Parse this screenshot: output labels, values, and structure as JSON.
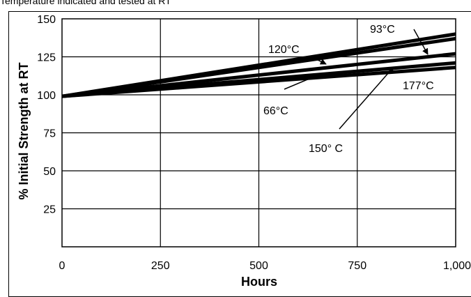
{
  "caption": "Temperature indicated and tested at RT",
  "chart_data": {
    "type": "line",
    "title": "",
    "xlabel": "Hours",
    "ylabel": "% Initial Strength at RT",
    "xlim": [
      0,
      1000
    ],
    "ylim": [
      0,
      150
    ],
    "x_ticks": [
      "0",
      "250",
      "500",
      "750",
      "1,000"
    ],
    "y_ticks": [
      "150",
      "125",
      "100",
      "75",
      "50",
      "25"
    ],
    "grid": true,
    "series": [
      {
        "name": "66°C",
        "x": [
          0,
          1000
        ],
        "y": [
          99,
          121
        ]
      },
      {
        "name": "93°C",
        "x": [
          0,
          1000
        ],
        "y": [
          99,
          137
        ]
      },
      {
        "name": "120°C",
        "x": [
          0,
          1000
        ],
        "y": [
          99,
          140
        ]
      },
      {
        "name": "150° C",
        "x": [
          0,
          1000
        ],
        "y": [
          99,
          127
        ]
      },
      {
        "name": "177°C",
        "x": [
          0,
          1000
        ],
        "y": [
          99,
          118
        ]
      }
    ]
  }
}
